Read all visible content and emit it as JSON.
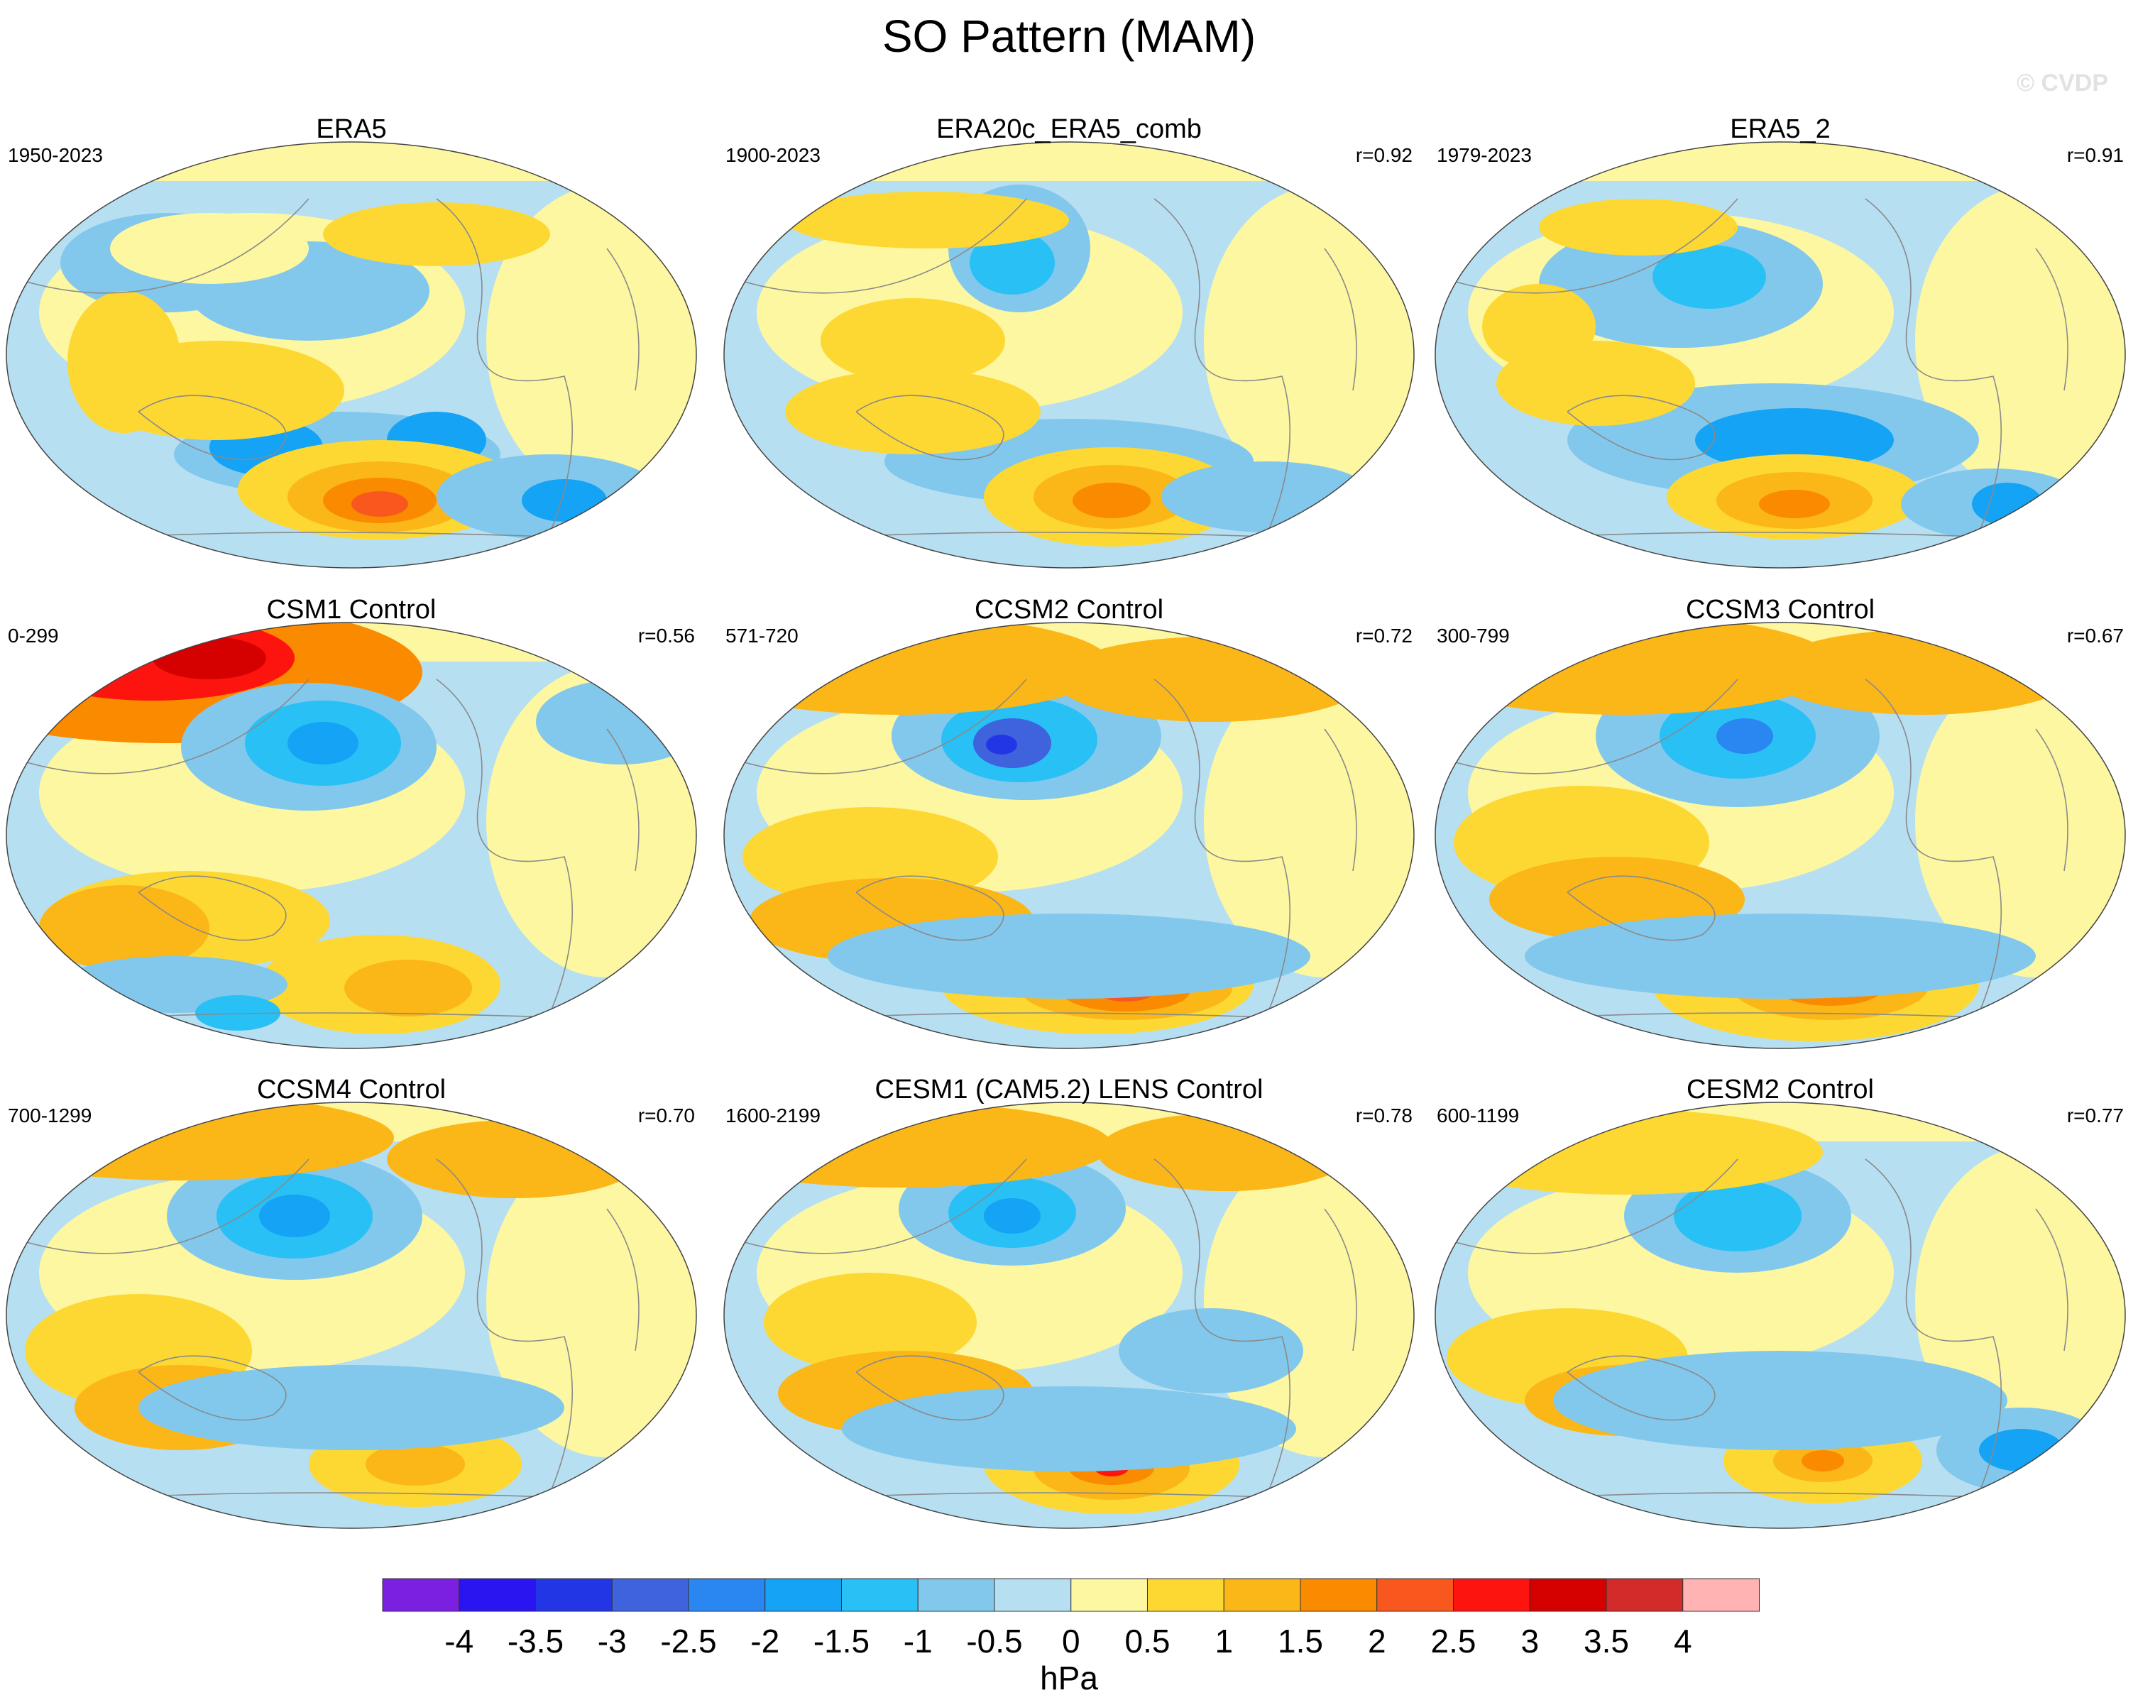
{
  "title": "SO Pattern (MAM)",
  "watermark": "© CVDP",
  "chart_data": {
    "type": "map-panels",
    "projection": "Robinson (Pacific-centered)",
    "variable": "sea level pressure regression (SO pattern)",
    "season": "MAM",
    "panels": [
      {
        "name": "ERA5",
        "period": "1950-2023",
        "r": ""
      },
      {
        "name": "ERA20c_ERA5_comb",
        "period": "1900-2023",
        "r": "r=0.92"
      },
      {
        "name": "ERA5_2",
        "period": "1979-2023",
        "r": "r=0.91"
      },
      {
        "name": "CSM1 Control",
        "period": "0-299",
        "r": "r=0.56"
      },
      {
        "name": "CCSM2 Control",
        "period": "571-720",
        "r": "r=0.72"
      },
      {
        "name": "CCSM3 Control",
        "period": "300-799",
        "r": "r=0.67"
      },
      {
        "name": "CCSM4 Control",
        "period": "700-1299",
        "r": "r=0.70"
      },
      {
        "name": "CESM1 (CAM5.2) LENS Control",
        "period": "1600-2199",
        "r": "r=0.78"
      },
      {
        "name": "CESM2 Control",
        "period": "600-1199",
        "r": "r=0.77"
      }
    ],
    "colorbar": {
      "unit": "hPa",
      "levels": [
        "-4",
        "-3.5",
        "-3",
        "-2.5",
        "-2",
        "-1.5",
        "-1",
        "-0.5",
        "0",
        "0.5",
        "1",
        "1.5",
        "2",
        "2.5",
        "3",
        "3.5",
        "4"
      ],
      "colors": [
        "#7b1fe0",
        "#2a14f0",
        "#2336e6",
        "#3e63dc",
        "#2a86f0",
        "#14a3f5",
        "#29c0f5",
        "#82c8ec",
        "#b7dff2",
        "#fdf7a1",
        "#fdd832",
        "#fbb617",
        "#fa8a00",
        "#f8581d",
        "#fe140f",
        "#d50000",
        "#d32a2a",
        "#ffb3b3"
      ]
    }
  }
}
